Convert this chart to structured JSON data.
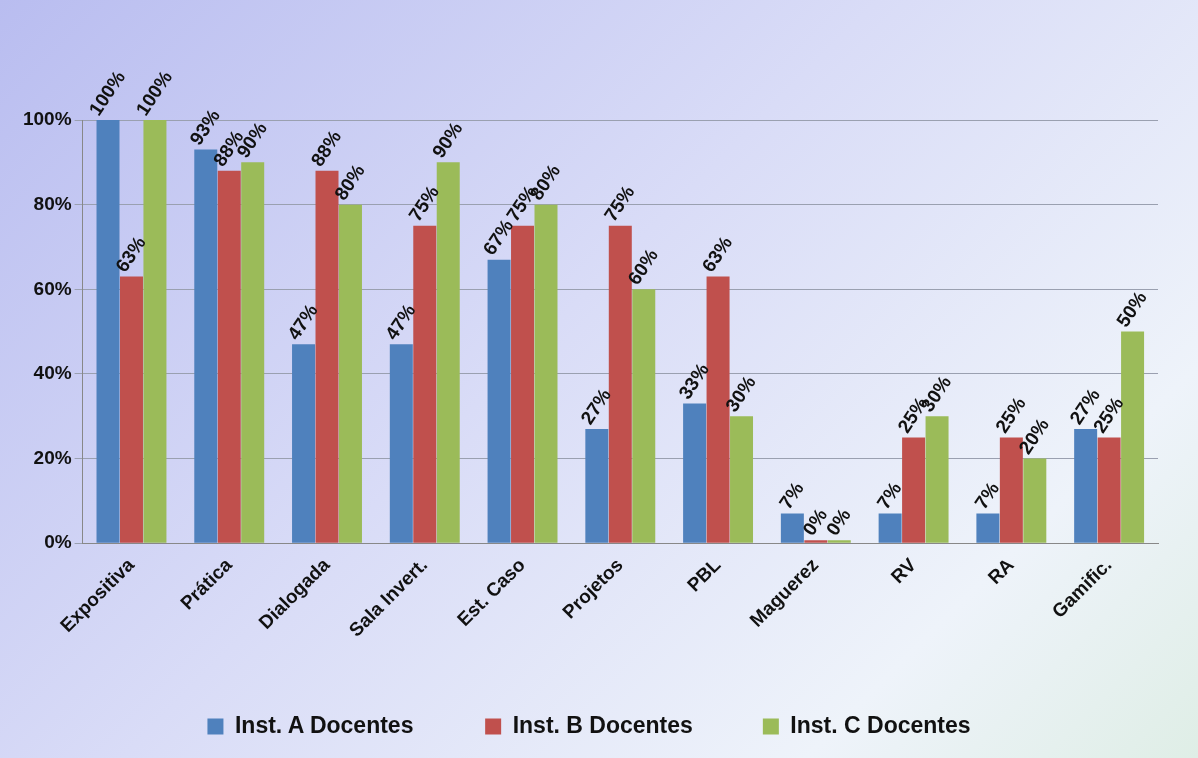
{
  "chart_data": {
    "type": "bar",
    "categories": [
      "Expositiva",
      "Prática",
      "Dialogada",
      "Sala Invert.",
      "Est. Caso",
      "Projetos",
      "PBL",
      "Maguerez",
      "RV",
      "RA",
      "Gamific."
    ],
    "series": [
      {
        "name": "Inst. A Docentes",
        "color": "#4f81bd",
        "values": [
          100,
          93,
          47,
          47,
          67,
          27,
          33,
          7,
          7,
          7,
          27
        ],
        "value_labels": [
          "100%",
          "93%",
          "47%",
          "47%",
          "67%",
          "27%",
          "33%",
          "7%",
          "7%",
          "7%",
          "27%"
        ]
      },
      {
        "name": "Inst. B Docentes",
        "color": "#c0504d",
        "values": [
          63,
          88,
          88,
          75,
          75,
          75,
          63,
          0,
          25,
          25,
          25
        ],
        "value_labels": [
          "63%",
          "88%",
          "88%",
          "75%",
          "75%",
          "75%",
          "63%",
          "0%",
          "25%",
          "25%",
          "25%"
        ]
      },
      {
        "name": "Inst. C Docentes",
        "color": "#9bbb59",
        "values": [
          100,
          90,
          80,
          90,
          80,
          60,
          30,
          0,
          30,
          20,
          50
        ],
        "value_labels": [
          "100%",
          "90%",
          "80%",
          "90%",
          "80%",
          "60%",
          "30%",
          "0%",
          "30%",
          "20%",
          "50%"
        ]
      }
    ],
    "ylim": [
      0,
      100
    ],
    "yticks": [
      {
        "value": 0,
        "label": "0%"
      },
      {
        "value": 20,
        "label": "20%"
      },
      {
        "value": 40,
        "label": "40%"
      },
      {
        "value": 60,
        "label": "60%"
      },
      {
        "value": 80,
        "label": "80%"
      },
      {
        "value": 100,
        "label": "100%"
      }
    ],
    "grid": "y",
    "legend": "bottom"
  }
}
